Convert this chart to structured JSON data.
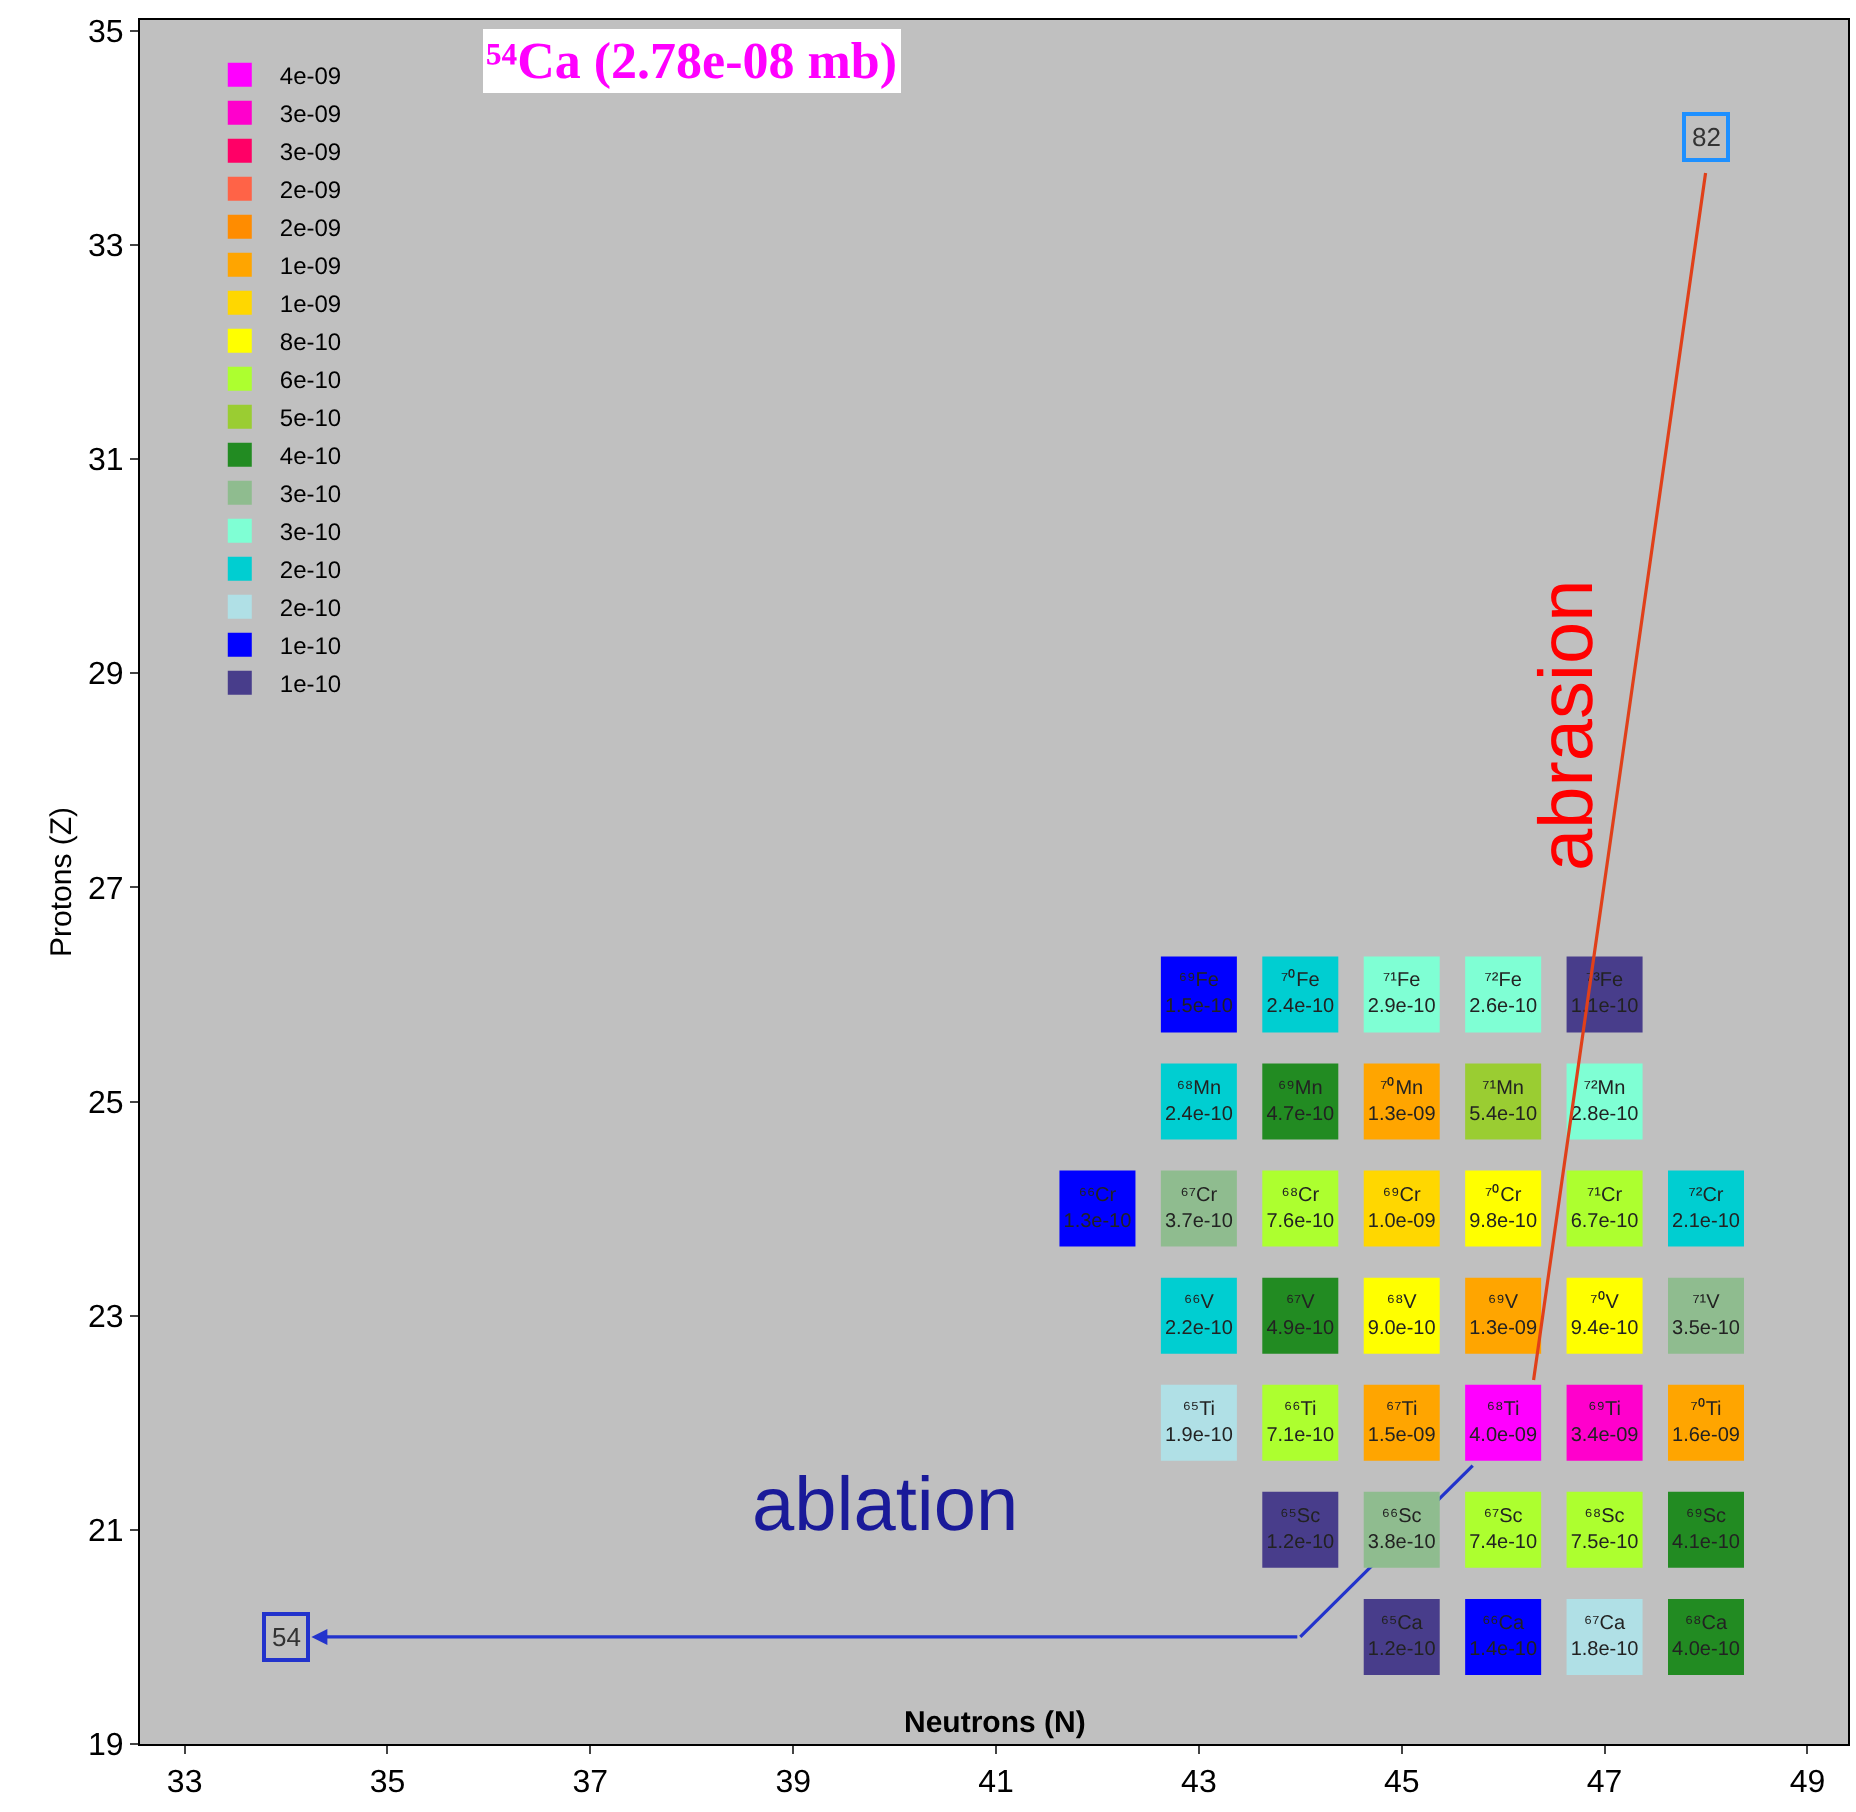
{
  "chart_data": {
    "type": "scatter",
    "title": "⁵⁴Ca (2.78e-08 mb)",
    "xlabel": "Neutrons (N)",
    "ylabel": "Protons (Z)",
    "xlim": [
      32.56,
      49.4
    ],
    "xticks": [
      33,
      35,
      37,
      39,
      41,
      43,
      45,
      47,
      49
    ],
    "ylim": [
      19,
      35.1
    ],
    "yticks": [
      19,
      21,
      23,
      25,
      27,
      29,
      31,
      33,
      35
    ],
    "grid": false,
    "legend": "top left",
    "marker": "square",
    "series": [
      {
        "name": "4e-09",
        "color": "#ff00ff",
        "x": [
          46
        ],
        "values": [
          22
        ],
        "value_labels": [
          "⁶⁸Ti\n4.0e-09"
        ]
      },
      {
        "name": "3e-09",
        "color": "#ff00cc",
        "x": [
          47
        ],
        "values": [
          22
        ],
        "value_labels": [
          "⁶⁹Ti\n3.4e-09"
        ]
      },
      {
        "name": "3e-09",
        "color": "#ff0066"
      },
      {
        "name": "2e-09",
        "color": "#ff6347"
      },
      {
        "name": "2e-09",
        "color": "#ff8c00"
      },
      {
        "name": "1e-09",
        "color": "#ffa500",
        "x": [
          45,
          46,
          45,
          48
        ],
        "values": [
          25,
          23,
          22,
          22
        ],
        "value_labels": [
          "⁷⁰Mn\n1.3e-09",
          "⁶⁹V\n1.3e-09",
          "⁶⁷Ti\n1.5e-09",
          "⁷⁰Ti\n1.6e-09"
        ]
      },
      {
        "name": "1e-09",
        "color": "#ffd700",
        "x": [
          45
        ],
        "values": [
          24
        ],
        "value_labels": [
          "⁶⁹Cr\n1.0e-09"
        ]
      },
      {
        "name": "8e-10",
        "color": "#ffff00",
        "x": [
          46,
          45,
          47
        ],
        "values": [
          24,
          23,
          23
        ],
        "value_labels": [
          "⁷⁰Cr\n9.8e-10",
          "⁶⁸V\n9.0e-10",
          "⁷⁰V\n9.4e-10"
        ]
      },
      {
        "name": "6e-10",
        "color": "#adff2f",
        "x": [
          44,
          47,
          44,
          46,
          47
        ],
        "values": [
          24,
          24,
          22,
          21,
          21
        ],
        "value_labels": [
          "⁶⁸Cr\n7.6e-10",
          "⁷¹Cr\n6.7e-10",
          "⁶⁶Ti\n7.1e-10",
          "⁶⁷Sc\n7.4e-10",
          "⁶⁸Sc\n7.5e-10"
        ]
      },
      {
        "name": "5e-10",
        "color": "#9acd32",
        "x": [
          46
        ],
        "values": [
          25
        ],
        "value_labels": [
          "⁷¹Mn\n5.4e-10"
        ]
      },
      {
        "name": "4e-10",
        "color": "#228b22",
        "x": [
          44,
          44,
          48,
          48
        ],
        "values": [
          25,
          23,
          21,
          20
        ],
        "value_labels": [
          "⁶⁹Mn\n4.7e-10",
          "⁶⁷V\n4.9e-10",
          "⁶⁹Sc\n4.1e-10",
          "⁶⁸Ca\n4.0e-10"
        ]
      },
      {
        "name": "3e-10",
        "color": "#8fbc8f",
        "x": [
          43,
          48,
          45
        ],
        "values": [
          24,
          23,
          21
        ],
        "value_labels": [
          "⁶⁷Cr\n3.7e-10",
          "⁷¹V\n3.5e-10",
          "⁶⁶Sc\n3.8e-10"
        ]
      },
      {
        "name": "3e-10",
        "color": "#7fffd4",
        "x": [
          45,
          46,
          47
        ],
        "values": [
          26,
          26,
          25
        ],
        "value_labels": [
          "⁷¹Fe\n2.9e-10",
          "⁷²Fe\n2.6e-10",
          "⁷²Mn\n2.8e-10"
        ]
      },
      {
        "name": "2e-10",
        "color": "#00ced1",
        "x": [
          44,
          43,
          48,
          43
        ],
        "values": [
          26,
          25,
          24,
          23
        ],
        "value_labels": [
          "⁷⁰Fe\n2.4e-10",
          "⁶⁸Mn\n2.4e-10",
          "⁷²Cr\n2.1e-10",
          "⁶⁶V\n2.2e-10"
        ]
      },
      {
        "name": "2e-10",
        "color": "#b0e0e6",
        "x": [
          43,
          47
        ],
        "values": [
          22,
          20
        ],
        "value_labels": [
          "⁶⁵Ti\n1.9e-10",
          "⁶⁷Ca\n1.8e-10"
        ]
      },
      {
        "name": "1e-10",
        "color": "#0000ff",
        "x": [
          43,
          42,
          46
        ],
        "values": [
          26,
          24,
          20
        ],
        "value_labels": [
          "⁶⁹Fe\n1.5e-10",
          "⁶⁶Cr\n1.3e-10",
          "⁶⁶Ca\n1.4e-10"
        ]
      },
      {
        "name": "1e-10",
        "color": "#483d8b",
        "x": [
          47,
          44,
          45
        ],
        "values": [
          26,
          21,
          20
        ],
        "value_labels": [
          "⁷³Fe\n1.1e-10",
          "⁶⁵Sc\n1.2e-10",
          "⁶⁵Ca\n1.2e-10"
        ]
      }
    ],
    "annotations": [
      {
        "text": "82",
        "x": 48,
        "y": 34
      },
      {
        "text": "54",
        "x": 34,
        "y": 20
      },
      "abrasion",
      "ablation"
    ]
  }
}
